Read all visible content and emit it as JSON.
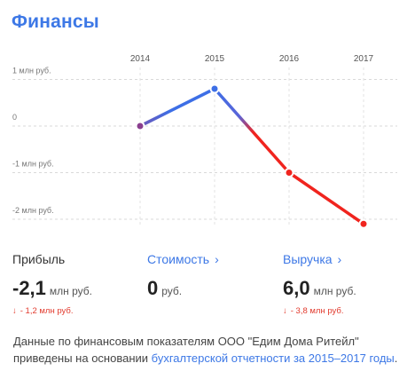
{
  "title": "Финансы",
  "chart_data": {
    "type": "line",
    "categories": [
      "2014",
      "2015",
      "2016",
      "2017"
    ],
    "series": [
      {
        "values": [
          0.0,
          0.8,
          -1.0,
          -2.1
        ]
      }
    ],
    "y_tick_labels": [
      "1 млн руб.",
      "0",
      "-1 млн руб.",
      "-2 млн руб."
    ],
    "y_ticks": [
      1,
      0,
      -1,
      -2
    ],
    "ylim": [
      -2.15,
      1.0
    ],
    "grid": true,
    "colors": {
      "positive": "#3d6fe6",
      "negative": "#f0241e",
      "marker_fill": "#ffffff"
    }
  },
  "metrics": {
    "profit": {
      "label": "Прибыль",
      "value": "-2,1",
      "unit": "млн руб.",
      "arrow": "↓",
      "delta": "- 1,2 млн руб."
    },
    "cost": {
      "label": "Стоимость",
      "chevron": "›",
      "value": "0",
      "unit": "руб."
    },
    "revenue": {
      "label": "Выручка",
      "chevron": "›",
      "value": "6,0",
      "unit": "млн руб.",
      "arrow": "↓",
      "delta": "- 3,8 млн руб."
    }
  },
  "note": {
    "text": "Данные по финансовым показателям ООО \"Едим Дома Ритейл\" приведены на основании ",
    "link": "бухгалтерской отчетности за 2015–2017 годы",
    "end": "."
  }
}
